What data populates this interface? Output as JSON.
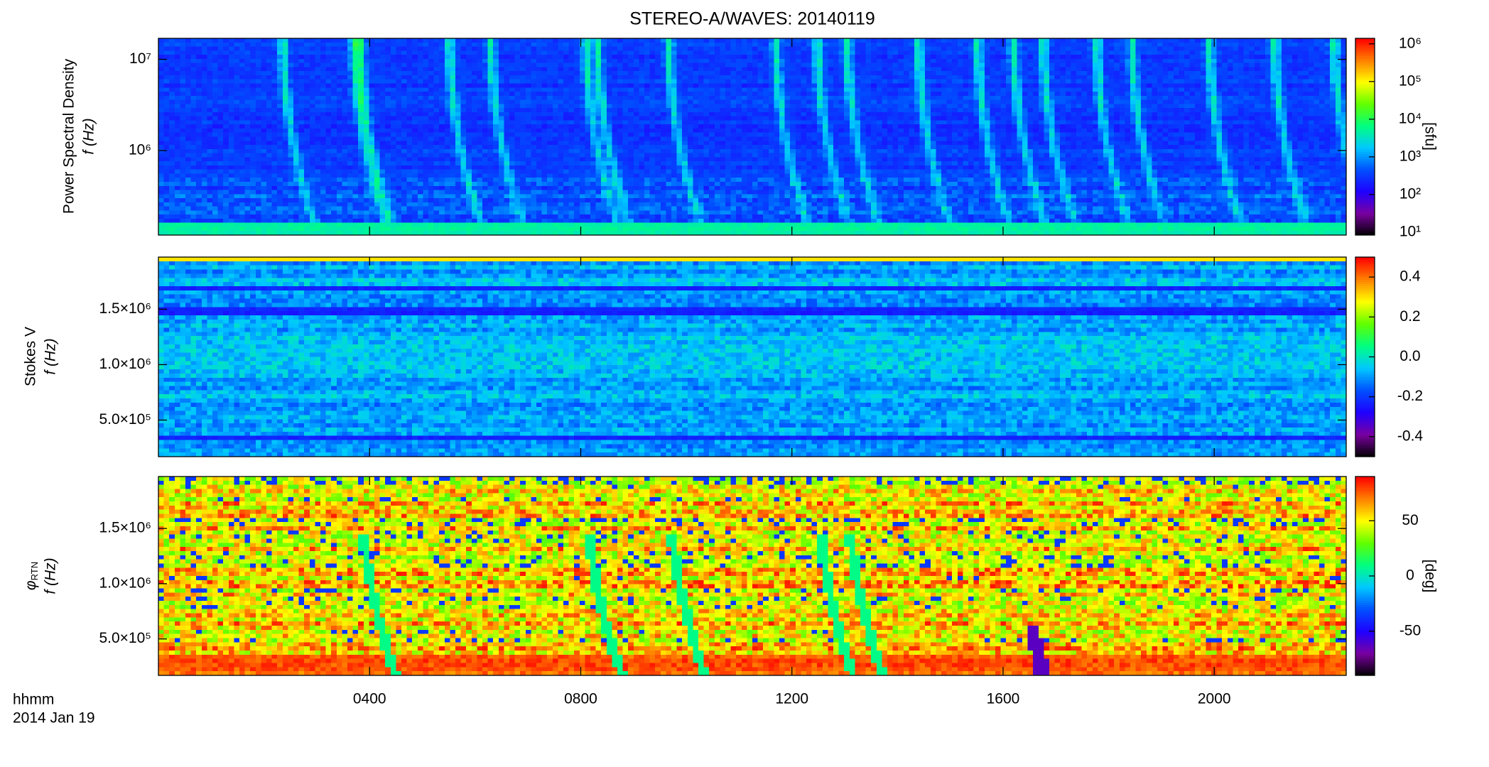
{
  "chart_data": [
    {
      "type": "heatmap",
      "title": "STEREO-A/WAVES: 20140119",
      "ylabel": "Power Spectral Density",
      "flabel": "f (Hz)",
      "yscale": "log",
      "ylim": [
        118000,
        17000000
      ],
      "yticks": [
        {
          "value": 1000000,
          "label": "10⁶"
        },
        {
          "value": 10000000,
          "label": "10⁷"
        }
      ],
      "xlim": [
        0,
        22.5
      ],
      "colormap": [
        "#000000",
        "#7a00a0",
        "#1f00ff",
        "#0050ff",
        "#00c8ff",
        "#00ff80",
        "#60ff00",
        "#ffff00",
        "#ff8000",
        "#ff0000"
      ],
      "colorbar": {
        "label": "[sfu]",
        "scale": "log",
        "clim": [
          8.4,
          1400000
        ],
        "ticks": [
          {
            "value": 10,
            "label": "10¹"
          },
          {
            "value": 100,
            "label": "10²"
          },
          {
            "value": 1000,
            "label": "10³"
          },
          {
            "value": 10000,
            "label": "10⁴"
          },
          {
            "value": 100000,
            "label": "10⁵"
          },
          {
            "value": 1000000,
            "label": "10⁶"
          }
        ]
      }
    },
    {
      "type": "heatmap",
      "ylabel": "Stokes V",
      "flabel": "f (Hz)",
      "yscale": "linear",
      "ylim": [
        170000,
        1970000
      ],
      "yticks": [
        {
          "value": 500000,
          "label": "5.0×10⁵"
        },
        {
          "value": 1000000,
          "label": "1.0×10⁶"
        },
        {
          "value": 1500000,
          "label": "1.5×10⁶"
        }
      ],
      "xlim": [
        0,
        22.5
      ],
      "colormap": [
        "#000000",
        "#7a00a0",
        "#1f00ff",
        "#0050ff",
        "#00c8ff",
        "#00ff80",
        "#60ff00",
        "#ffff00",
        "#ff8000",
        "#ff0000"
      ],
      "colorbar": {
        "scale": "linear",
        "clim": [
          -0.5,
          0.5
        ],
        "ticks": [
          -0.4,
          -0.2,
          {
            "value": 0,
            "label": "0.0"
          },
          0.2,
          0.4
        ]
      }
    },
    {
      "type": "heatmap",
      "ylabel": "φ",
      "ylabel_sub": "RTN",
      "flabel": "f (Hz)",
      "yscale": "linear",
      "ylim": [
        170000,
        1970000
      ],
      "yticks": [
        {
          "value": 500000,
          "label": "5.0×10⁵"
        },
        {
          "value": 1000000,
          "label": "1.0×10⁶"
        },
        {
          "value": 1500000,
          "label": "1.5×10⁶"
        }
      ],
      "xlim": [
        0,
        22.5
      ],
      "xticks": [
        {
          "value": 4,
          "label": "0400"
        },
        {
          "value": 8,
          "label": "0800"
        },
        {
          "value": 12,
          "label": "1200"
        },
        {
          "value": 16,
          "label": "1600"
        },
        {
          "value": 20,
          "label": "2000"
        }
      ],
      "xlabel": "hhmm",
      "date": "2014 Jan 19",
      "colormap": [
        "#000000",
        "#7a00a0",
        "#1f00ff",
        "#0050ff",
        "#00c8ff",
        "#00ff80",
        "#60ff00",
        "#ffff00",
        "#ff8000",
        "#ff0000"
      ],
      "colorbar": {
        "label": "[deg]",
        "scale": "linear",
        "clim": [
          -90,
          90
        ],
        "ticks": [
          -50,
          0,
          50
        ]
      }
    }
  ]
}
